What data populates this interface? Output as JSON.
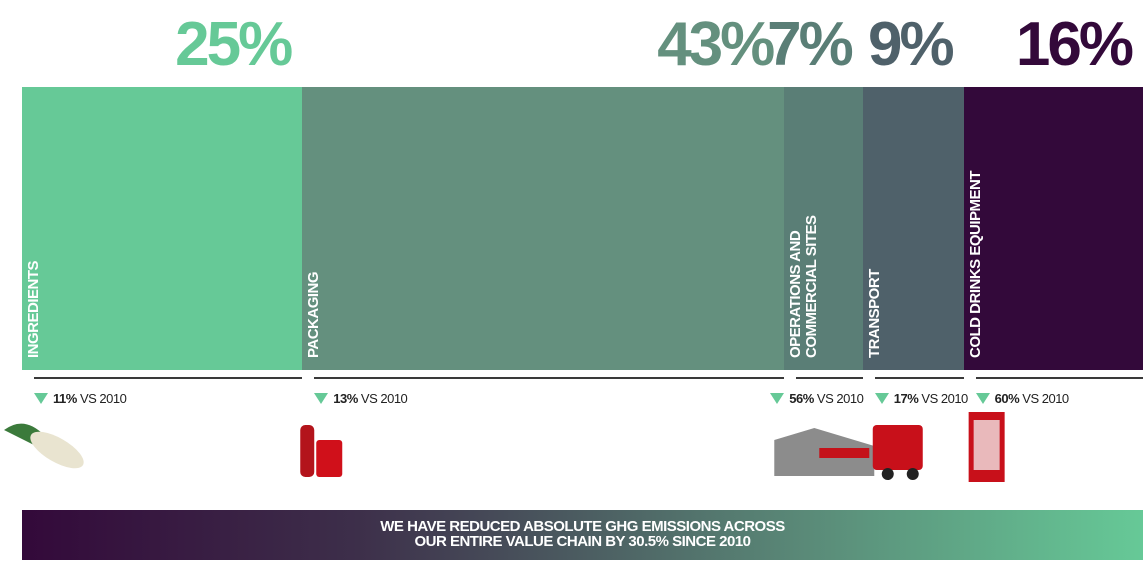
{
  "chart_data": {
    "type": "share_bar",
    "categories": [
      "INGREDIENTS",
      "PACKAGING",
      "OPERATIONS AND COMMERCIAL SITES",
      "TRANSPORT",
      "COLD DRINKS EQUIPMENT"
    ],
    "values": [
      25,
      43,
      7,
      9,
      16
    ],
    "value_labels": [
      "25%",
      "43%",
      "7%",
      "9%",
      "16%"
    ],
    "colors": [
      "#66c997",
      "#64907e",
      "#5a7e76",
      "#4f616a",
      "#33093a"
    ],
    "changes": [
      "11%",
      "13%",
      "56%",
      "17%",
      "60%"
    ],
    "change_suffix": "VS 2010",
    "footer": [
      "WE HAVE REDUCED ABSOLUTE GHG EMISSIONS ACROSS",
      "OUR ENTIRE VALUE CHAIN BY 30.5% SINCE 2010"
    ]
  }
}
